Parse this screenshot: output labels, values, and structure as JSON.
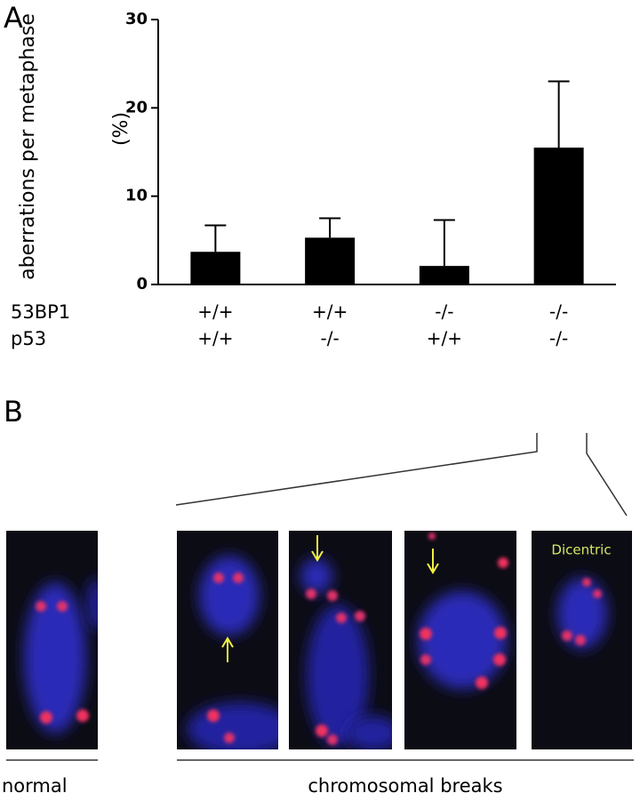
{
  "panel_labels": [
    "A",
    "B"
  ],
  "chart_data": {
    "type": "bar",
    "y_label": [
      "aberrations per metaphase",
      "(%)"
    ],
    "category_rows": [
      {
        "name": "53BP1",
        "labels": [
          "+/+",
          "+/+",
          "-/-",
          "-/-"
        ]
      },
      {
        "name": "p53",
        "labels": [
          "+/+",
          "-/-",
          "+/+",
          "-/-"
        ]
      }
    ],
    "values": [
      3.7,
      5.3,
      2.1,
      15.5
    ],
    "errors": [
      3.0,
      2.2,
      5.2,
      7.5
    ],
    "color": "#000000",
    "ylim": [
      0,
      30
    ],
    "yticks": [
      0,
      10,
      20,
      30
    ]
  },
  "panel_b": {
    "image_label": "Dicentric",
    "group_labels": [
      "normal",
      "chromosomal breaks"
    ]
  }
}
